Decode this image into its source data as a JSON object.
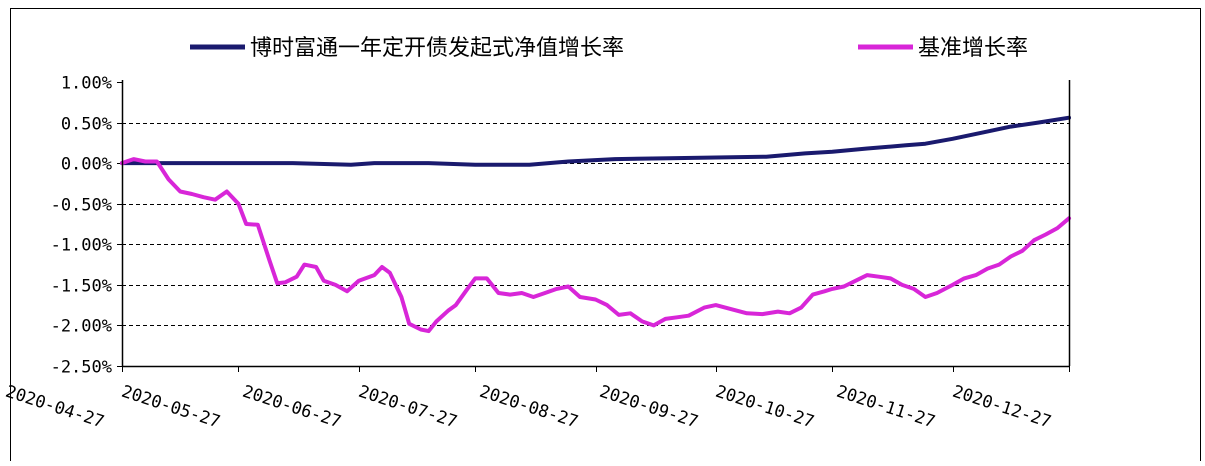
{
  "chart_data": {
    "type": "line",
    "title": "",
    "xlabel": "",
    "ylabel": "",
    "ylim": [
      -2.5,
      1.0
    ],
    "y_ticks": [
      "1.00%",
      "0.50%",
      "0.00%",
      "-0.50%",
      "-1.00%",
      "-1.50%",
      "-2.00%",
      "-2.50%"
    ],
    "y_tick_values": [
      1.0,
      0.5,
      0.0,
      -0.5,
      -1.0,
      -1.5,
      -2.0,
      -2.5
    ],
    "x_range": [
      "2020-04-27",
      "2020-12-27"
    ],
    "x_ticks": [
      "2020-04-27",
      "2020-05-27",
      "2020-06-27",
      "2020-07-27",
      "2020-08-27",
      "2020-09-27",
      "2020-10-27",
      "2020-11-27",
      "2020-12-27"
    ],
    "grid": "horizontal dashed",
    "legend_position": "top",
    "series": [
      {
        "name": "博时富通一年定开债发起式净值增长率",
        "color": "#1a1a6e",
        "points": [
          [
            "2020-04-27",
            0.0
          ],
          [
            "2020-05-10",
            0.0
          ],
          [
            "2020-05-27",
            0.0
          ],
          [
            "2020-06-10",
            0.0
          ],
          [
            "2020-06-25",
            -0.02
          ],
          [
            "2020-07-01",
            0.0
          ],
          [
            "2020-07-15",
            0.0
          ],
          [
            "2020-07-27",
            -0.02
          ],
          [
            "2020-08-10",
            -0.02
          ],
          [
            "2020-08-20",
            0.02
          ],
          [
            "2020-09-01",
            0.05
          ],
          [
            "2020-09-15",
            0.06
          ],
          [
            "2020-09-27",
            0.07
          ],
          [
            "2020-10-10",
            0.08
          ],
          [
            "2020-10-20",
            0.12
          ],
          [
            "2020-10-27",
            0.14
          ],
          [
            "2020-11-05",
            0.18
          ],
          [
            "2020-11-15",
            0.22
          ],
          [
            "2020-11-20",
            0.24
          ],
          [
            "2020-11-27",
            0.3
          ],
          [
            "2020-12-05",
            0.38
          ],
          [
            "2020-12-12",
            0.45
          ],
          [
            "2020-12-19",
            0.5
          ],
          [
            "2020-12-27",
            0.56
          ]
        ]
      },
      {
        "name": "基准增长率",
        "color": "#d826d8",
        "points": [
          [
            "2020-04-27",
            0.0
          ],
          [
            "2020-04-30",
            0.05
          ],
          [
            "2020-05-03",
            0.02
          ],
          [
            "2020-05-06",
            0.02
          ],
          [
            "2020-05-09",
            -0.2
          ],
          [
            "2020-05-12",
            -0.35
          ],
          [
            "2020-05-15",
            -0.38
          ],
          [
            "2020-05-18",
            -0.42
          ],
          [
            "2020-05-21",
            -0.45
          ],
          [
            "2020-05-24",
            -0.35
          ],
          [
            "2020-05-27",
            -0.5
          ],
          [
            "2020-05-29",
            -0.75
          ],
          [
            "2020-06-01",
            -0.76
          ],
          [
            "2020-06-04",
            -1.2
          ],
          [
            "2020-06-06",
            -1.48
          ],
          [
            "2020-06-08",
            -1.47
          ],
          [
            "2020-06-11",
            -1.4
          ],
          [
            "2020-06-13",
            -1.25
          ],
          [
            "2020-06-16",
            -1.28
          ],
          [
            "2020-06-18",
            -1.45
          ],
          [
            "2020-06-21",
            -1.5
          ],
          [
            "2020-06-24",
            -1.58
          ],
          [
            "2020-06-27",
            -1.45
          ],
          [
            "2020-07-01",
            -1.38
          ],
          [
            "2020-07-03",
            -1.28
          ],
          [
            "2020-07-05",
            -1.35
          ],
          [
            "2020-07-08",
            -1.65
          ],
          [
            "2020-07-10",
            -1.98
          ],
          [
            "2020-07-13",
            -2.05
          ],
          [
            "2020-07-15",
            -2.07
          ],
          [
            "2020-07-17",
            -1.95
          ],
          [
            "2020-07-20",
            -1.82
          ],
          [
            "2020-07-22",
            -1.75
          ],
          [
            "2020-07-25",
            -1.55
          ],
          [
            "2020-07-27",
            -1.42
          ],
          [
            "2020-07-30",
            -1.42
          ],
          [
            "2020-08-02",
            -1.6
          ],
          [
            "2020-08-05",
            -1.62
          ],
          [
            "2020-08-08",
            -1.6
          ],
          [
            "2020-08-11",
            -1.65
          ],
          [
            "2020-08-14",
            -1.6
          ],
          [
            "2020-08-17",
            -1.55
          ],
          [
            "2020-08-20",
            -1.52
          ],
          [
            "2020-08-23",
            -1.65
          ],
          [
            "2020-08-27",
            -1.68
          ],
          [
            "2020-08-30",
            -1.75
          ],
          [
            "2020-09-02",
            -1.87
          ],
          [
            "2020-09-05",
            -1.85
          ],
          [
            "2020-09-08",
            -1.95
          ],
          [
            "2020-09-11",
            -2.0
          ],
          [
            "2020-09-14",
            -1.92
          ],
          [
            "2020-09-17",
            -1.9
          ],
          [
            "2020-09-20",
            -1.88
          ],
          [
            "2020-09-24",
            -1.78
          ],
          [
            "2020-09-27",
            -1.75
          ],
          [
            "2020-10-01",
            -1.8
          ],
          [
            "2020-10-05",
            -1.85
          ],
          [
            "2020-10-09",
            -1.86
          ],
          [
            "2020-10-13",
            -1.83
          ],
          [
            "2020-10-16",
            -1.85
          ],
          [
            "2020-10-19",
            -1.78
          ],
          [
            "2020-10-22",
            -1.62
          ],
          [
            "2020-10-25",
            -1.58
          ],
          [
            "2020-10-27",
            -1.55
          ],
          [
            "2020-10-30",
            -1.52
          ],
          [
            "2020-11-02",
            -1.45
          ],
          [
            "2020-11-05",
            -1.38
          ],
          [
            "2020-11-08",
            -1.4
          ],
          [
            "2020-11-11",
            -1.42
          ],
          [
            "2020-11-14",
            -1.5
          ],
          [
            "2020-11-17",
            -1.55
          ],
          [
            "2020-11-20",
            -1.65
          ],
          [
            "2020-11-23",
            -1.6
          ],
          [
            "2020-11-27",
            -1.5
          ],
          [
            "2020-11-30",
            -1.42
          ],
          [
            "2020-12-03",
            -1.38
          ],
          [
            "2020-12-06",
            -1.3
          ],
          [
            "2020-12-09",
            -1.25
          ],
          [
            "2020-12-12",
            -1.15
          ],
          [
            "2020-12-15",
            -1.08
          ],
          [
            "2020-12-18",
            -0.95
          ],
          [
            "2020-12-21",
            -0.88
          ],
          [
            "2020-12-24",
            -0.8
          ],
          [
            "2020-12-27",
            -0.68
          ]
        ]
      }
    ]
  }
}
